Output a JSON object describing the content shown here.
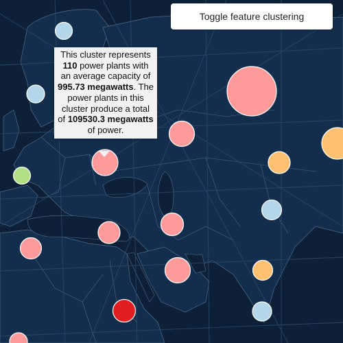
{
  "toolbar": {
    "toggle_label": "Toggle feature clustering"
  },
  "popup": {
    "text_1": "This cluster represents ",
    "count": "110",
    "text_2": " power plants with an average capacity of ",
    "avg_capacity": "995.73 megawatts",
    "text_3": ". The power plants in this cluster produce a total of ",
    "total_capacity": "109530.3 megawatts",
    "text_4": " of power."
  },
  "colors": {
    "map_background": "#0d2038",
    "land": "#13304f",
    "land_light": "#1f4b72",
    "borders": "#5a7896",
    "grid": "#2a4a6b",
    "cluster_pink": "#ff9a9a",
    "cluster_orange": "#ffc071",
    "cluster_lightblue": "#b4d6ea",
    "cluster_green": "#b0df84",
    "cluster_red": "#e21e22",
    "cluster_outline": "#ffffff"
  },
  "clusters": [
    {
      "name": "cluster-scandinavia-north",
      "color": "cluster_lightblue"
    },
    {
      "name": "cluster-scandinavia-south",
      "color": "cluster_lightblue"
    },
    {
      "name": "cluster-ural-large",
      "color": "cluster_pink"
    },
    {
      "name": "cluster-russia-central",
      "color": "cluster_pink"
    },
    {
      "name": "cluster-ukraine-selected",
      "color": "cluster_pink"
    },
    {
      "name": "cluster-france",
      "color": "cluster_green"
    },
    {
      "name": "cluster-kazakhstan",
      "color": "cluster_orange"
    },
    {
      "name": "cluster-east-edge",
      "color": "cluster_orange"
    },
    {
      "name": "cluster-central-asia",
      "color": "cluster_lightblue"
    },
    {
      "name": "cluster-turkey",
      "color": "cluster_pink"
    },
    {
      "name": "cluster-iran-west",
      "color": "cluster_pink"
    },
    {
      "name": "cluster-algeria",
      "color": "cluster_pink"
    },
    {
      "name": "cluster-gulf",
      "color": "cluster_pink"
    },
    {
      "name": "cluster-pakistan",
      "color": "cluster_orange"
    },
    {
      "name": "cluster-sudan",
      "color": "cluster_red"
    },
    {
      "name": "cluster-india",
      "color": "cluster_lightblue"
    },
    {
      "name": "cluster-west-africa",
      "color": "cluster_pink"
    }
  ]
}
